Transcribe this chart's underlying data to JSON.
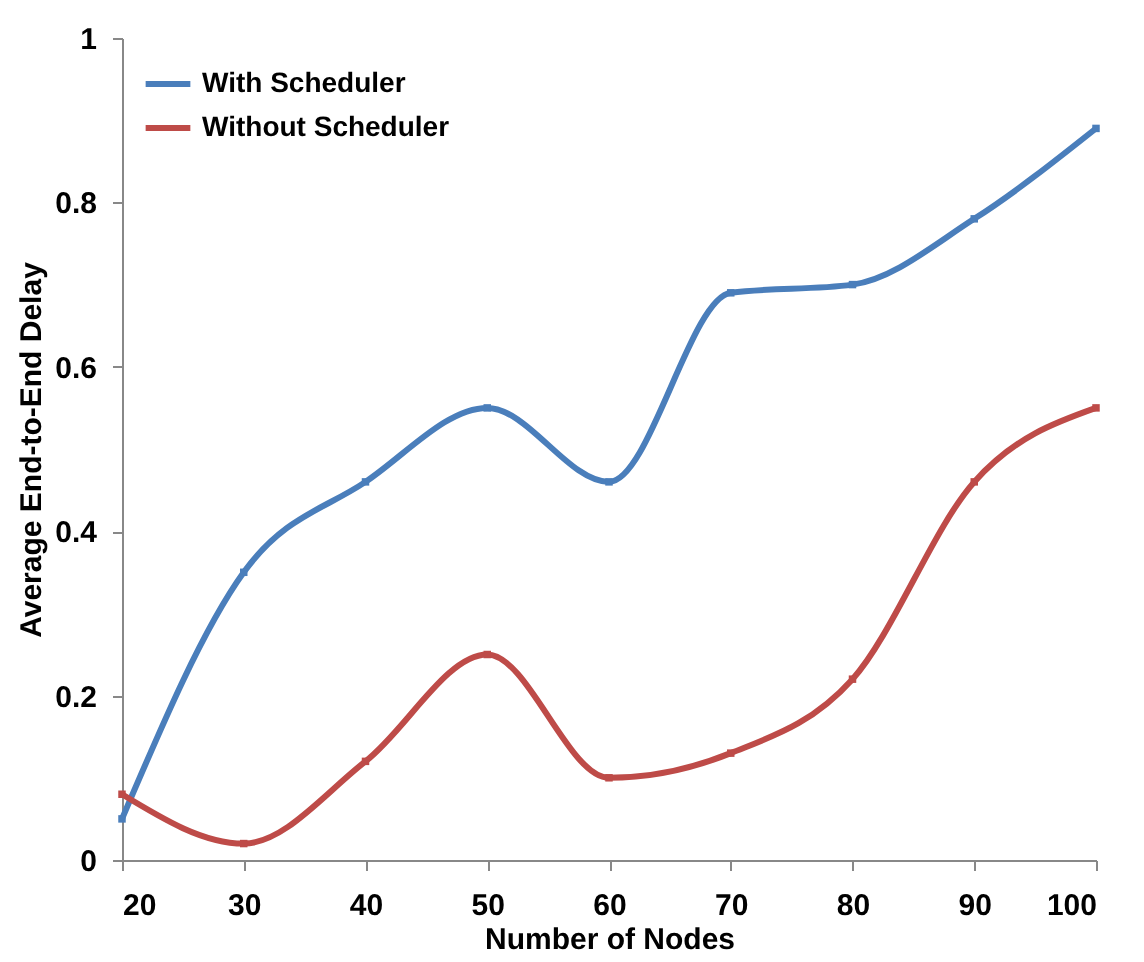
{
  "chart_data": {
    "type": "line",
    "xlabel": "Number of Nodes",
    "ylabel": "Average End-to-End Delay",
    "x": [
      20,
      30,
      40,
      50,
      60,
      70,
      80,
      90,
      100
    ],
    "series": [
      {
        "name": "With Scheduler",
        "color": "#4a7ebb",
        "values": [
          0.05,
          0.35,
          0.46,
          0.55,
          0.46,
          0.69,
          0.7,
          0.78,
          0.89
        ]
      },
      {
        "name": "Without Scheduler",
        "color": "#be4b48",
        "values": [
          0.08,
          0.02,
          0.12,
          0.25,
          0.1,
          0.13,
          0.22,
          0.46,
          0.55
        ]
      }
    ],
    "xlim": [
      20,
      100
    ],
    "xticks": [
      20,
      30,
      40,
      50,
      60,
      70,
      80,
      90,
      100
    ],
    "ylim": [
      0,
      1
    ],
    "yticks": [
      0,
      0.2,
      0.4,
      0.6,
      0.8,
      1
    ],
    "grid": false,
    "legend": "top left",
    "marker": "square",
    "line_style": "solid"
  }
}
